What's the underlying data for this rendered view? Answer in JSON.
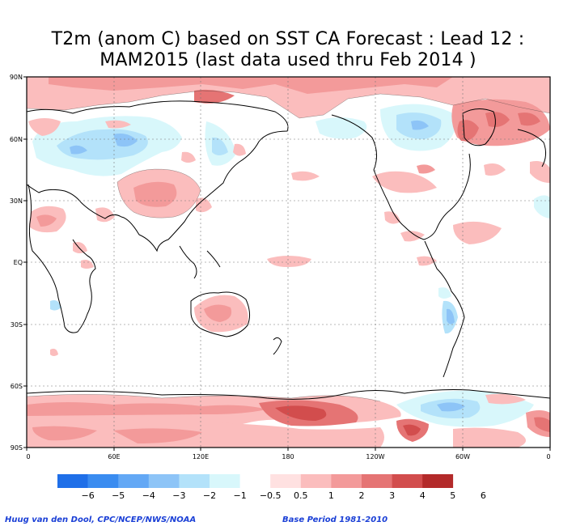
{
  "title": {
    "line1": "T2m (anom C) based on SST CA Forecast : Lead 12 :",
    "line2": "MAM2015 (last data used thru Feb 2014 )"
  },
  "lat_labels": [
    "90N",
    "60N",
    "30N",
    "EQ",
    "30S",
    "60S",
    "90S"
  ],
  "lon_labels": [
    "0",
    "60E",
    "120E",
    "180",
    "120W",
    "60W",
    "0"
  ],
  "colorbar": {
    "colors": [
      "#1f6fe8",
      "#3a8cf0",
      "#63a8f5",
      "#8dc4f7",
      "#b3e2fa",
      "#d8f7fb",
      "#ffffff",
      "#ffe1e1",
      "#fbbdbd",
      "#f39a9a",
      "#e57474",
      "#d24d4d",
      "#b32a2a"
    ],
    "labels": [
      "−6",
      "−5",
      "−4",
      "−3",
      "−2",
      "−1",
      "−0.5",
      "0.5",
      "1",
      "2",
      "3",
      "4",
      "5",
      "6"
    ]
  },
  "credit_left": "Huug van den Dool, CPC/NCEP/NWS/NOAA",
  "credit_right": "Base Period 1981-2010"
}
